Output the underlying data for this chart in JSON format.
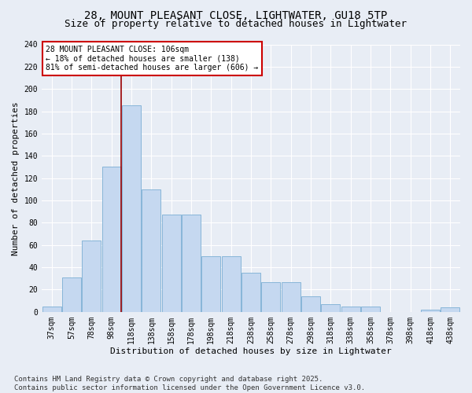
{
  "title_line1": "28, MOUNT PLEASANT CLOSE, LIGHTWATER, GU18 5TP",
  "title_line2": "Size of property relative to detached houses in Lightwater",
  "xlabel": "Distribution of detached houses by size in Lightwater",
  "ylabel": "Number of detached properties",
  "bar_labels": [
    "37sqm",
    "57sqm",
    "78sqm",
    "98sqm",
    "118sqm",
    "138sqm",
    "158sqm",
    "178sqm",
    "198sqm",
    "218sqm",
    "238sqm",
    "258sqm",
    "278sqm",
    "298sqm",
    "318sqm",
    "338sqm",
    "358sqm",
    "378sqm",
    "398sqm",
    "418sqm",
    "438sqm"
  ],
  "bar_values": [
    5,
    31,
    64,
    130,
    185,
    110,
    87,
    87,
    50,
    50,
    35,
    27,
    27,
    14,
    7,
    5,
    5,
    0,
    0,
    2,
    4
  ],
  "bar_color": "#c5d8f0",
  "bar_edgecolor": "#7aaed4",
  "background_color": "#e8edf5",
  "grid_color": "#ffffff",
  "vline_color": "#990000",
  "vline_x_idx": 4,
  "annotation_text": "28 MOUNT PLEASANT CLOSE: 106sqm\n← 18% of detached houses are smaller (138)\n81% of semi-detached houses are larger (606) →",
  "annotation_box_facecolor": "#ffffff",
  "annotation_box_edgecolor": "#cc0000",
  "ylim": [
    0,
    240
  ],
  "yticks": [
    0,
    20,
    40,
    60,
    80,
    100,
    120,
    140,
    160,
    180,
    200,
    220,
    240
  ],
  "footnote": "Contains HM Land Registry data © Crown copyright and database right 2025.\nContains public sector information licensed under the Open Government Licence v3.0.",
  "title_fontsize": 10,
  "subtitle_fontsize": 9,
  "tick_fontsize": 7,
  "ylabel_fontsize": 8,
  "xlabel_fontsize": 8,
  "annotation_fontsize": 7,
  "footnote_fontsize": 6.5
}
